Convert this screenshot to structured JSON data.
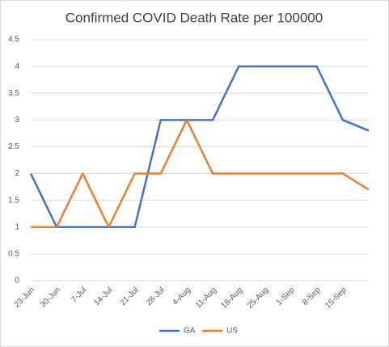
{
  "chart_data": {
    "type": "line",
    "title": "Confirmed COVID Death Rate per 100000",
    "categories": [
      "23-Jun",
      "30-Jun",
      "7-Jul",
      "14-Jul",
      "21-Jul",
      "28-Jul",
      "4-Aug",
      "11-Aug",
      "18-Aug",
      "25-Aug",
      "1-Sep",
      "8-Sep",
      "15-Sep",
      null
    ],
    "series": [
      {
        "name": "GA",
        "color": "#4472c4",
        "values": [
          2,
          1,
          1,
          1,
          1,
          3,
          3,
          3,
          4,
          4,
          4,
          4,
          3,
          2.8
        ]
      },
      {
        "name": "US",
        "color": "#ed7d31",
        "values": [
          1,
          1,
          2,
          1,
          2,
          2,
          3,
          2,
          2,
          2,
          2,
          2,
          2,
          1.7
        ]
      }
    ],
    "ylim": [
      0,
      4.5
    ],
    "yticks": [
      0,
      0.5,
      1,
      1.5,
      2,
      2.5,
      3,
      3.5,
      4,
      4.5
    ],
    "grid": true,
    "legend": "bottom"
  }
}
